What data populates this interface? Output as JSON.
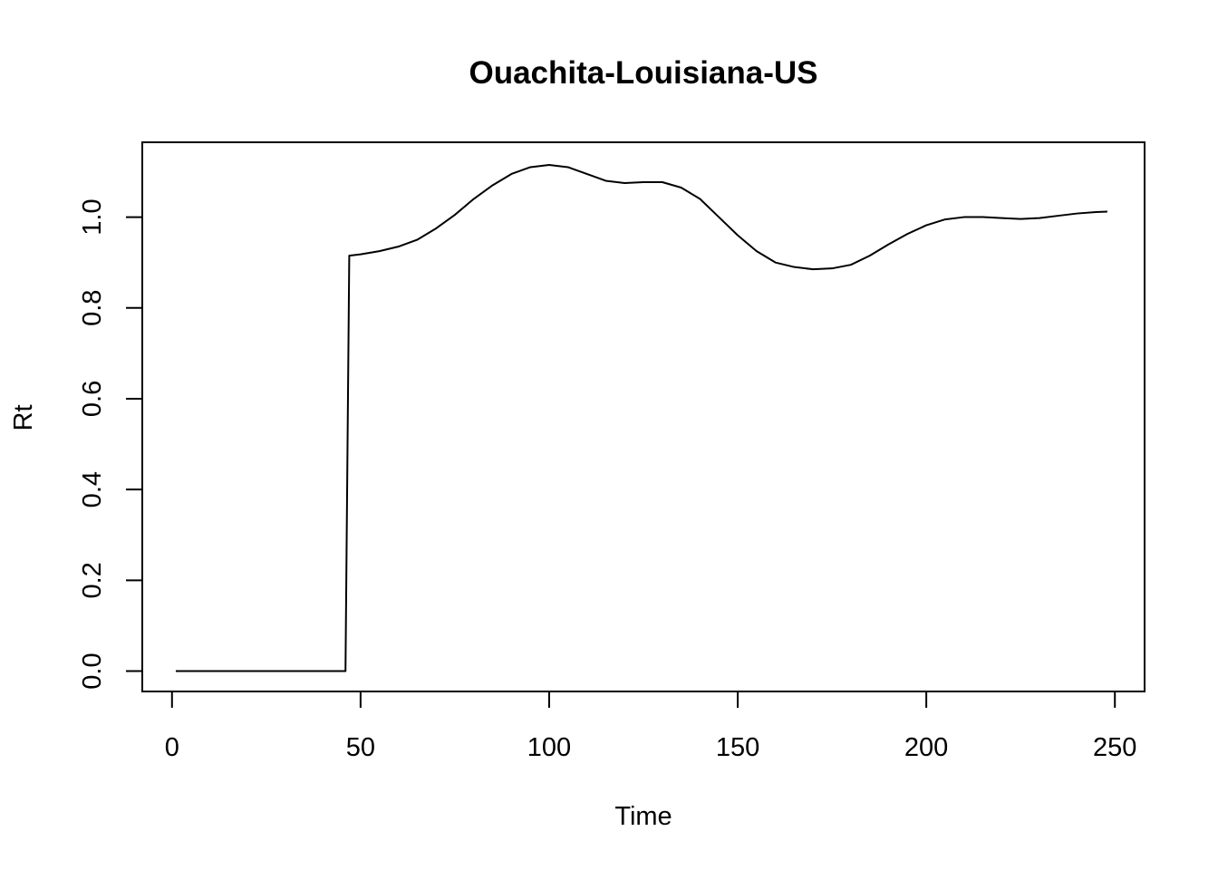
{
  "chart_data": {
    "type": "line",
    "title": "Ouachita-Louisiana-US",
    "xlabel": "Time",
    "ylabel": "Rt",
    "xlim": [
      -7.88,
      257.88
    ],
    "ylim": [
      -0.0448,
      1.1648
    ],
    "x_ticks": [
      0,
      50,
      100,
      150,
      200,
      250
    ],
    "x_tick_labels": [
      "0",
      "50",
      "100",
      "150",
      "200",
      "250"
    ],
    "y_ticks": [
      0.0,
      0.2,
      0.4,
      0.6,
      0.8,
      1.0
    ],
    "y_tick_labels": [
      "0.0",
      "0.2",
      "0.4",
      "0.6",
      "0.8",
      "1.0"
    ],
    "grid": false,
    "color": "#000000",
    "series": [
      {
        "x": [
          1,
          10,
          20,
          30,
          40,
          46,
          47,
          50,
          55,
          60,
          65,
          70,
          75,
          80,
          85,
          90,
          95,
          100,
          105,
          110,
          115,
          120,
          125,
          130,
          135,
          140,
          145,
          150,
          155,
          160,
          165,
          170,
          175,
          180,
          185,
          190,
          195,
          200,
          205,
          210,
          215,
          220,
          225,
          230,
          235,
          240,
          245,
          248
        ],
        "values": [
          0.0,
          0.0,
          0.0,
          0.0,
          0.0,
          0.0,
          0.915,
          0.918,
          0.925,
          0.935,
          0.95,
          0.975,
          1.005,
          1.04,
          1.07,
          1.095,
          1.11,
          1.115,
          1.11,
          1.095,
          1.08,
          1.075,
          1.077,
          1.077,
          1.065,
          1.04,
          1.0,
          0.96,
          0.925,
          0.9,
          0.89,
          0.885,
          0.887,
          0.895,
          0.915,
          0.94,
          0.963,
          0.982,
          0.995,
          1.0,
          1.0,
          0.998,
          0.996,
          0.998,
          1.003,
          1.008,
          1.011,
          1.012
        ]
      }
    ]
  }
}
